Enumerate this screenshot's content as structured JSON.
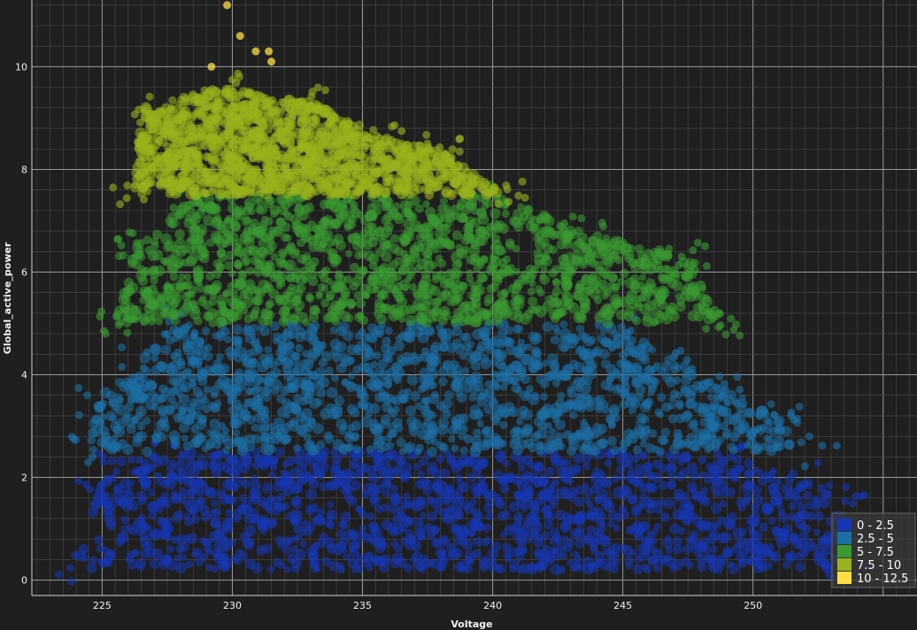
{
  "chart_data": {
    "type": "scatter",
    "title": "",
    "xlabel": "Voltage",
    "ylabel": "Global_active_power",
    "xlim": [
      222.3,
      256.3
    ],
    "ylim": [
      -0.3,
      11.3
    ],
    "xticks": [
      225,
      230,
      235,
      240,
      245,
      250
    ],
    "yticks": [
      0,
      2,
      4,
      6,
      8,
      10
    ],
    "grid": true,
    "minor_grid": true,
    "legend_position": "bottom-right",
    "background": "#1f1f1f",
    "series": [
      {
        "name": "0 - 2.5",
        "range": [
          0,
          2.5
        ],
        "color": "#1536b4",
        "envelope": [
          [
            224.0,
            0.2
          ],
          [
            224.8,
            1.7
          ],
          [
            225.6,
            2.3
          ],
          [
            227,
            2.5
          ],
          [
            245,
            2.5
          ],
          [
            249,
            2.4
          ],
          [
            252.5,
            2.0
          ],
          [
            253.5,
            1.6
          ],
          [
            253.5,
            0.2
          ]
        ]
      },
      {
        "name": "2.5 - 5",
        "range": [
          2.5,
          5
        ],
        "color": "#1b6fa6",
        "envelope": [
          [
            224.5,
            2.5
          ],
          [
            224.8,
            3.5
          ],
          [
            226.5,
            4.3
          ],
          [
            228,
            5.0
          ],
          [
            245,
            5.0
          ],
          [
            247,
            4.3
          ],
          [
            249,
            3.7
          ],
          [
            251,
            3.2
          ],
          [
            252.5,
            2.5
          ]
        ]
      },
      {
        "name": "5 - 7.5",
        "range": [
          5,
          7.5
        ],
        "color": "#3a9a32",
        "envelope": [
          [
            225.5,
            5.0
          ],
          [
            226.3,
            6.5
          ],
          [
            228.5,
            7.5
          ],
          [
            240,
            7.5
          ],
          [
            243.5,
            6.8
          ],
          [
            247.5,
            6.3
          ],
          [
            248.8,
            5.0
          ]
        ]
      },
      {
        "name": "7.5 - 10",
        "range": [
          7.5,
          10
        ],
        "color": "#99b21c",
        "envelope": [
          [
            226.2,
            7.5
          ],
          [
            226.5,
            9.2
          ],
          [
            229.5,
            9.6
          ],
          [
            233,
            9.3
          ],
          [
            236,
            8.6
          ],
          [
            238,
            8.4
          ],
          [
            240.5,
            7.5
          ]
        ]
      },
      {
        "name": "10 - 12.5",
        "range": [
          10,
          12.5
        ],
        "color": "#ffe040",
        "points": [
          [
            229.8,
            11.2
          ],
          [
            230.3,
            10.6
          ],
          [
            231.4,
            10.3
          ],
          [
            231.5,
            10.1
          ],
          [
            230.9,
            10.3
          ],
          [
            229.2,
            10.0
          ]
        ]
      }
    ]
  }
}
